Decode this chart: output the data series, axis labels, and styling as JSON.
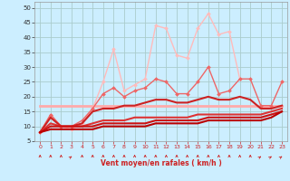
{
  "title": "",
  "xlabel": "Vent moyen/en rafales ( km/h )",
  "ylabel": "",
  "background_color": "#cceeff",
  "grid_color": "#aacccc",
  "xlim": [
    -0.5,
    23.5
  ],
  "ylim": [
    5,
    52
  ],
  "yticks": [
    5,
    10,
    15,
    20,
    25,
    30,
    35,
    40,
    45,
    50
  ],
  "xticks": [
    0,
    1,
    2,
    3,
    4,
    5,
    6,
    7,
    8,
    9,
    10,
    11,
    12,
    13,
    14,
    15,
    16,
    17,
    18,
    19,
    20,
    21,
    22,
    23
  ],
  "series": [
    {
      "x": [
        0,
        1,
        2,
        3,
        4,
        5,
        6,
        7,
        8,
        9,
        10,
        11,
        12,
        13,
        14,
        15,
        16,
        17,
        18,
        19,
        20,
        21,
        22,
        23
      ],
      "y": [
        17,
        17,
        17,
        17,
        17,
        17,
        17,
        17,
        17,
        17,
        17,
        17,
        17,
        17,
        17,
        17,
        17,
        17,
        17,
        17,
        17,
        17,
        17,
        17
      ],
      "color": "#ffaaaa",
      "linewidth": 2.0,
      "marker": null,
      "zorder": 2
    },
    {
      "x": [
        0,
        1,
        2,
        3,
        4,
        5,
        6,
        7,
        8,
        9,
        10,
        11,
        12,
        13,
        14,
        15,
        16,
        17,
        18,
        19
      ],
      "y": [
        8,
        14,
        10,
        9,
        11,
        16,
        25,
        36,
        22,
        24,
        26,
        44,
        43,
        34,
        33,
        43,
        48,
        41,
        42,
        26
      ],
      "color": "#ffbbbb",
      "linewidth": 1.0,
      "marker": "D",
      "markersize": 2,
      "zorder": 3
    },
    {
      "x": [
        23
      ],
      "y": [
        25
      ],
      "color": "#ffbbbb",
      "linewidth": 1.0,
      "marker": "D",
      "markersize": 2,
      "zorder": 3
    },
    {
      "x": [
        0,
        1,
        2,
        3,
        4,
        5,
        6,
        7,
        8,
        9,
        10,
        11,
        12,
        13,
        14,
        15,
        16,
        17,
        18,
        19,
        20,
        21,
        22,
        23
      ],
      "y": [
        8,
        14,
        10,
        10,
        12,
        16,
        21,
        23,
        20,
        22,
        23,
        26,
        25,
        21,
        21,
        25,
        30,
        21,
        22,
        26,
        26,
        17,
        17,
        25
      ],
      "color": "#ee6666",
      "linewidth": 1.0,
      "marker": "D",
      "markersize": 2,
      "zorder": 4
    },
    {
      "x": [
        0,
        1,
        2,
        3,
        4,
        5,
        6,
        7,
        8,
        9,
        10,
        11,
        12,
        13,
        14,
        15,
        16,
        17,
        18,
        19,
        20,
        21,
        22,
        23
      ],
      "y": [
        8,
        13,
        10,
        10,
        11,
        15,
        16,
        16,
        17,
        17,
        18,
        19,
        19,
        18,
        18,
        19,
        20,
        19,
        19,
        20,
        19,
        16,
        16,
        17
      ],
      "color": "#cc2222",
      "linewidth": 1.5,
      "marker": null,
      "zorder": 5
    },
    {
      "x": [
        0,
        1,
        2,
        3,
        4,
        5,
        6,
        7,
        8,
        9,
        10,
        11,
        12,
        13,
        14,
        15,
        16,
        17,
        18,
        19,
        20,
        21,
        22,
        23
      ],
      "y": [
        8,
        11,
        10,
        10,
        10,
        11,
        12,
        12,
        12,
        13,
        13,
        13,
        13,
        13,
        13,
        14,
        14,
        14,
        14,
        14,
        14,
        14,
        15,
        16
      ],
      "color": "#dd3333",
      "linewidth": 1.5,
      "marker": null,
      "zorder": 6
    },
    {
      "x": [
        0,
        1,
        2,
        3,
        4,
        5,
        6,
        7,
        8,
        9,
        10,
        11,
        12,
        13,
        14,
        15,
        16,
        17,
        18,
        19,
        20,
        21,
        22,
        23
      ],
      "y": [
        8,
        10,
        10,
        10,
        10,
        10,
        11,
        11,
        11,
        11,
        11,
        12,
        12,
        12,
        12,
        12,
        13,
        13,
        13,
        13,
        13,
        13,
        14,
        15
      ],
      "color": "#cc1111",
      "linewidth": 1.5,
      "marker": null,
      "zorder": 7
    },
    {
      "x": [
        0,
        1,
        2,
        3,
        4,
        5,
        6,
        7,
        8,
        9,
        10,
        11,
        12,
        13,
        14,
        15,
        16,
        17,
        18,
        19,
        20,
        21,
        22,
        23
      ],
      "y": [
        8,
        9,
        9,
        9,
        9,
        9,
        10,
        10,
        10,
        10,
        10,
        11,
        11,
        11,
        11,
        11,
        12,
        12,
        12,
        12,
        12,
        12,
        13,
        15
      ],
      "color": "#bb0000",
      "linewidth": 1.5,
      "marker": null,
      "zorder": 8
    }
  ],
  "arrow_color": "#cc2222",
  "arrow_angles_deg": [
    90,
    90,
    90,
    45,
    90,
    90,
    90,
    90,
    90,
    90,
    90,
    90,
    90,
    90,
    90,
    90,
    90,
    90,
    90,
    90,
    90,
    45,
    45,
    45
  ]
}
